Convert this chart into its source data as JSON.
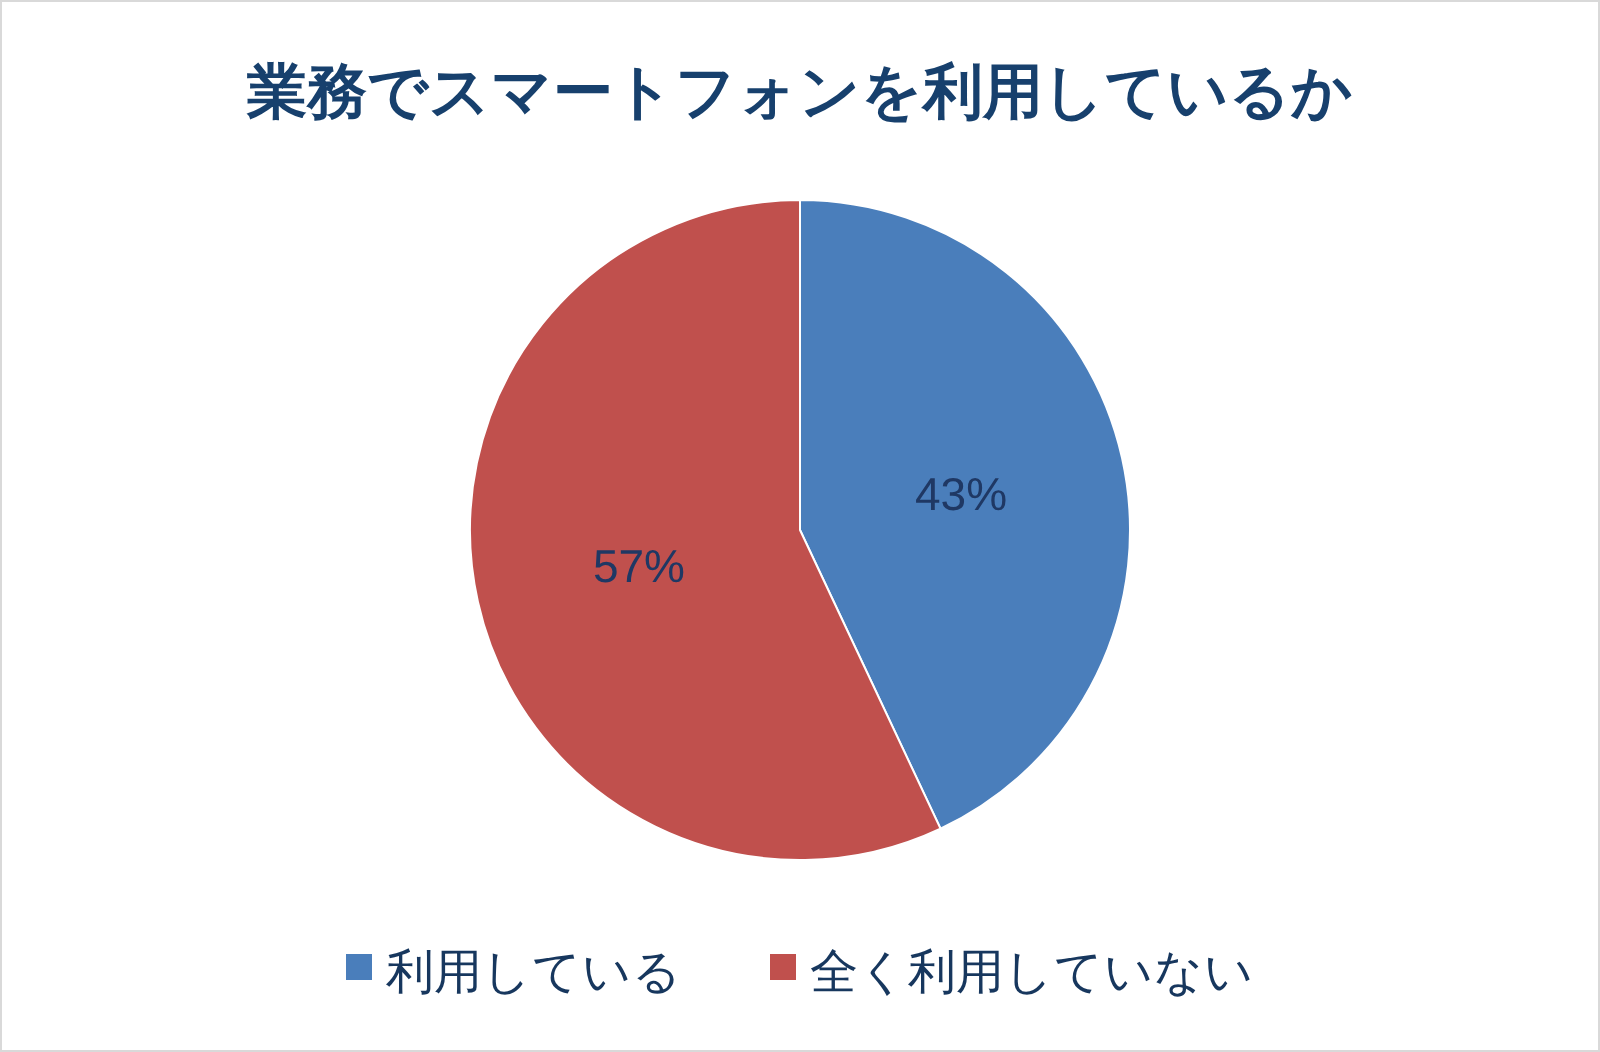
{
  "chart_data": {
    "type": "pie",
    "title": "業務でスマートフォンを利用しているか",
    "categories": [
      "利用している",
      "全く利用していない"
    ],
    "values": [
      43,
      57
    ],
    "colors": [
      "#4a7ebb",
      "#c0504d"
    ],
    "value_labels": [
      "43%",
      "57%"
    ],
    "legend": "bottom"
  }
}
